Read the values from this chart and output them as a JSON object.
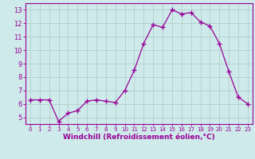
{
  "x": [
    0,
    1,
    2,
    3,
    4,
    5,
    6,
    7,
    8,
    9,
    10,
    11,
    12,
    13,
    14,
    15,
    16,
    17,
    18,
    19,
    20,
    21,
    22,
    23
  ],
  "y": [
    6.3,
    6.3,
    6.3,
    4.7,
    5.3,
    5.5,
    6.2,
    6.3,
    6.2,
    6.1,
    7.0,
    8.5,
    10.5,
    11.9,
    11.7,
    13.0,
    12.7,
    12.8,
    12.1,
    11.8,
    10.5,
    8.4,
    6.5,
    6.0
  ],
  "line_color": "#990099",
  "marker": "+",
  "marker_size": 4,
  "bg_color": "#ceeaea",
  "grid_color": "#b0c8c8",
  "xlabel": "Windchill (Refroidissement éolien,°C)",
  "xlim": [
    -0.5,
    23.5
  ],
  "ylim": [
    4.5,
    13.5
  ],
  "xticks": [
    0,
    1,
    2,
    3,
    4,
    5,
    6,
    7,
    8,
    9,
    10,
    11,
    12,
    13,
    14,
    15,
    16,
    17,
    18,
    19,
    20,
    21,
    22,
    23
  ],
  "yticks": [
    5,
    6,
    7,
    8,
    9,
    10,
    11,
    12,
    13
  ],
  "tick_color": "#990099",
  "label_color": "#990099",
  "spine_color": "#990099",
  "tick_fontsize": 6,
  "xlabel_fontsize": 6.5
}
